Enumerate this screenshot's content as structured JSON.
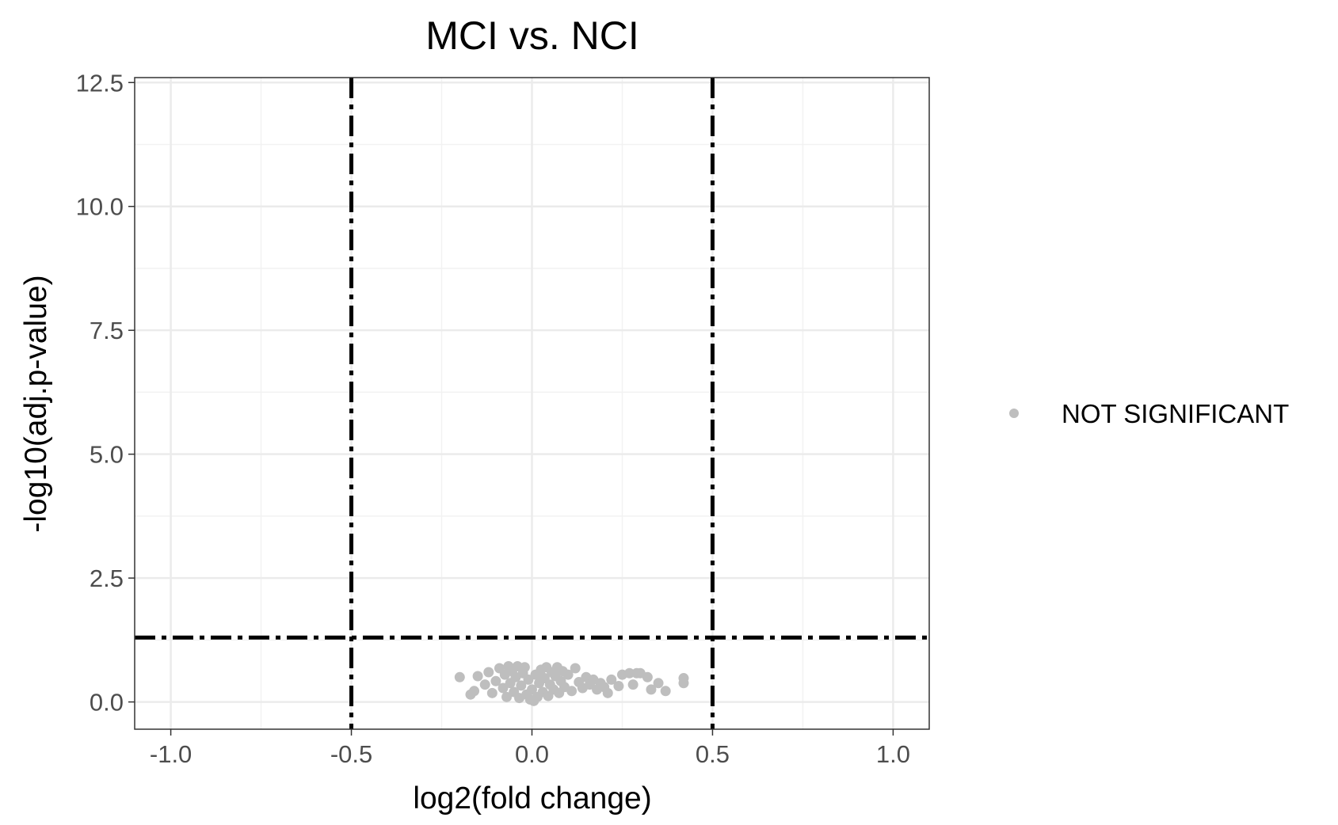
{
  "chart_data": {
    "type": "scatter",
    "title": "MCI vs. NCI",
    "xlabel": "log2(fold change)",
    "ylabel": "-log10(adj.p-value)",
    "xlim": [
      -1.1,
      1.1
    ],
    "ylim": [
      -0.55,
      12.6
    ],
    "x_ticks": [
      -1.0,
      -0.5,
      0.0,
      0.5,
      1.0
    ],
    "x_tick_labels": [
      "-1.0",
      "-0.5",
      "0.0",
      "0.5",
      "1.0"
    ],
    "y_ticks": [
      0.0,
      2.5,
      5.0,
      7.5,
      10.0,
      12.5
    ],
    "y_tick_labels": [
      "0.0",
      "2.5",
      "5.0",
      "7.5",
      "10.0",
      "12.5"
    ],
    "grid": true,
    "legend_placement": "right",
    "thresholds": {
      "x": [
        -0.5,
        0.5
      ],
      "y": 1.3
    },
    "series": [
      {
        "name": "NOT SIGNIFICANT",
        "color": "#bebebe",
        "points": [
          [
            -0.2,
            0.5
          ],
          [
            -0.17,
            0.15
          ],
          [
            -0.15,
            0.52
          ],
          [
            -0.16,
            0.22
          ],
          [
            -0.13,
            0.35
          ],
          [
            -0.12,
            0.6
          ],
          [
            -0.11,
            0.18
          ],
          [
            -0.1,
            0.42
          ],
          [
            -0.09,
            0.68
          ],
          [
            -0.08,
            0.28
          ],
          [
            -0.075,
            0.55
          ],
          [
            -0.07,
            0.1
          ],
          [
            -0.065,
            0.72
          ],
          [
            -0.06,
            0.38
          ],
          [
            -0.055,
            0.62
          ],
          [
            -0.05,
            0.2
          ],
          [
            -0.045,
            0.5
          ],
          [
            -0.04,
            0.72
          ],
          [
            -0.035,
            0.08
          ],
          [
            -0.03,
            0.33
          ],
          [
            -0.025,
            0.58
          ],
          [
            -0.02,
            0.7
          ],
          [
            -0.015,
            0.15
          ],
          [
            -0.01,
            0.45
          ],
          [
            -0.005,
            0.05
          ],
          [
            0.0,
            0.25
          ],
          [
            0.005,
            0.02
          ],
          [
            0.01,
            0.55
          ],
          [
            0.015,
            0.1
          ],
          [
            0.02,
            0.38
          ],
          [
            0.025,
            0.65
          ],
          [
            0.03,
            0.2
          ],
          [
            0.035,
            0.48
          ],
          [
            0.04,
            0.7
          ],
          [
            0.045,
            0.12
          ],
          [
            0.05,
            0.35
          ],
          [
            0.055,
            0.6
          ],
          [
            0.06,
            0.25
          ],
          [
            0.065,
            0.52
          ],
          [
            0.07,
            0.7
          ],
          [
            0.075,
            0.18
          ],
          [
            0.08,
            0.42
          ],
          [
            0.085,
            0.62
          ],
          [
            0.09,
            0.3
          ],
          [
            0.1,
            0.55
          ],
          [
            0.11,
            0.22
          ],
          [
            0.12,
            0.68
          ],
          [
            0.13,
            0.4
          ],
          [
            0.14,
            0.28
          ],
          [
            0.15,
            0.5
          ],
          [
            0.16,
            0.35
          ],
          [
            0.17,
            0.45
          ],
          [
            0.18,
            0.25
          ],
          [
            0.19,
            0.38
          ],
          [
            0.2,
            0.3
          ],
          [
            0.21,
            0.18
          ],
          [
            0.22,
            0.45
          ],
          [
            0.24,
            0.32
          ],
          [
            0.25,
            0.55
          ],
          [
            0.27,
            0.58
          ],
          [
            0.28,
            0.35
          ],
          [
            0.29,
            0.58
          ],
          [
            0.3,
            0.58
          ],
          [
            0.32,
            0.5
          ],
          [
            0.33,
            0.25
          ],
          [
            0.35,
            0.38
          ],
          [
            0.37,
            0.22
          ],
          [
            0.42,
            0.38
          ],
          [
            0.42,
            0.48
          ]
        ]
      }
    ]
  }
}
